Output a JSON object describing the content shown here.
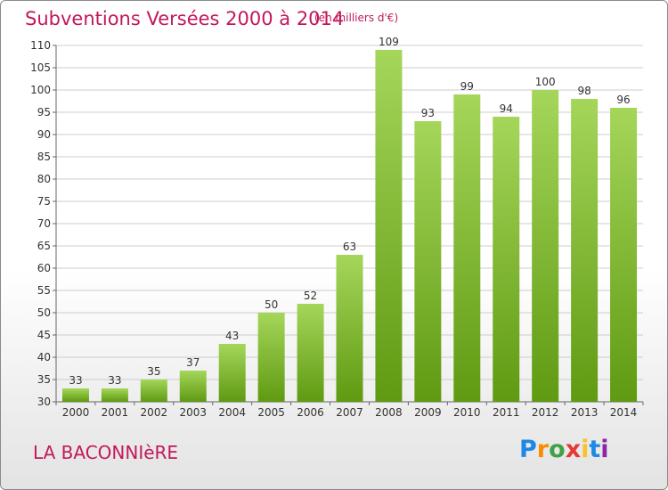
{
  "header": {
    "title": "Subventions Versées 2000 à 2014",
    "subtitle": "(en milliers d'€)"
  },
  "footer": {
    "commune": "LA BACONNIèRE",
    "logo_text": "Proxiti"
  },
  "colors": {
    "title": "#c2185b",
    "bar_light": "#a5d65a",
    "bar_dark": "#5f9a12",
    "grid": "#cccccc",
    "axis": "#666666"
  },
  "chart_data": {
    "type": "bar",
    "title": "Subventions Versées 2000 à 2014",
    "subtitle": "(en milliers d'€)",
    "xlabel": "",
    "ylabel": "",
    "categories": [
      "2000",
      "2001",
      "2002",
      "2003",
      "2004",
      "2005",
      "2006",
      "2007",
      "2008",
      "2009",
      "2010",
      "2011",
      "2012",
      "2013",
      "2014"
    ],
    "values": [
      33,
      33,
      35,
      37,
      43,
      50,
      52,
      63,
      109,
      93,
      99,
      94,
      100,
      98,
      96
    ],
    "ylim": [
      30,
      110
    ],
    "yticks": [
      30,
      35,
      40,
      45,
      50,
      55,
      60,
      65,
      70,
      75,
      80,
      85,
      90,
      95,
      100,
      105,
      110
    ],
    "grid": true,
    "legend": "none"
  }
}
